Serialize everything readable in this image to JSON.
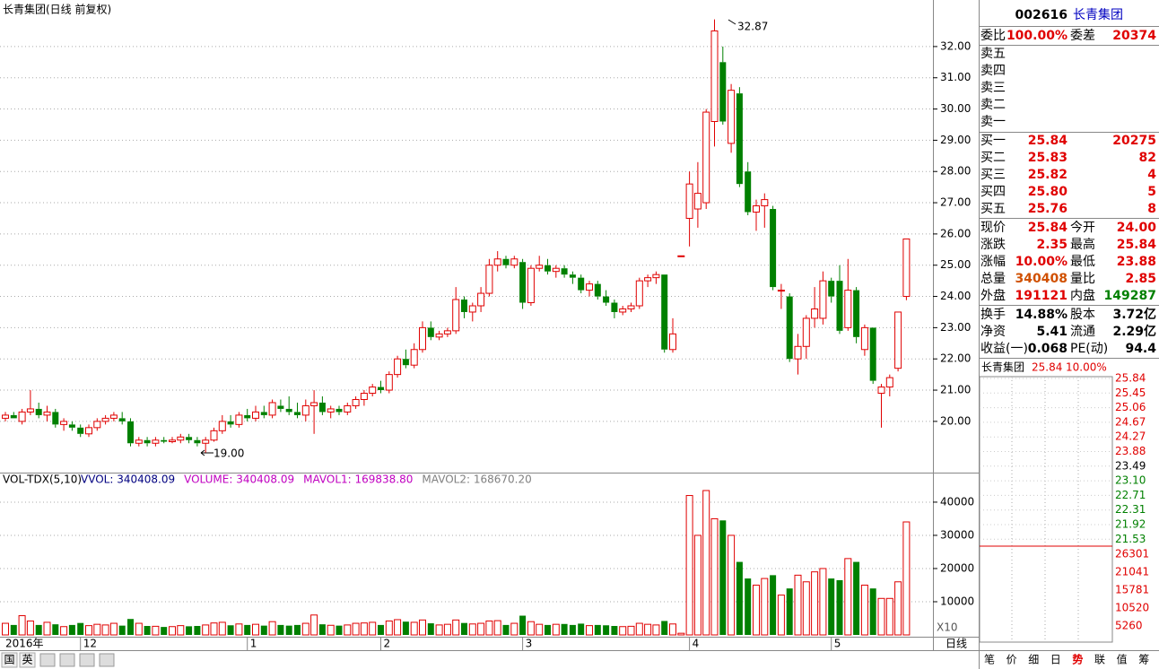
{
  "chart_data": [
    {
      "type": "candlestick",
      "title": "长青集团(日线 前复权)",
      "categories": [
        "2016年",
        null,
        null,
        null,
        null,
        null,
        null,
        null,
        null,
        "12",
        null,
        null,
        null,
        null,
        null,
        null,
        null,
        null,
        null,
        null,
        null,
        null,
        null,
        null,
        null,
        null,
        null,
        null,
        null,
        "1",
        null,
        null,
        null,
        null,
        null,
        null,
        null,
        null,
        null,
        null,
        null,
        null,
        null,
        null,
        null,
        "2",
        null,
        null,
        null,
        null,
        null,
        null,
        null,
        null,
        null,
        null,
        null,
        null,
        null,
        null,
        null,
        null,
        "3",
        null,
        null,
        null,
        null,
        null,
        null,
        null,
        null,
        null,
        null,
        null,
        null,
        null,
        null,
        null,
        null,
        null,
        null,
        null,
        "4",
        null,
        null,
        null,
        null,
        null,
        null,
        null,
        null,
        null,
        null,
        null,
        null,
        null,
        null,
        null,
        null,
        "5",
        null,
        null,
        null,
        null,
        null,
        null,
        null,
        null,
        null
      ],
      "open": [
        20.1,
        20.2,
        20.0,
        20.3,
        20.4,
        20.2,
        20.3,
        19.9,
        19.9,
        19.8,
        19.6,
        19.8,
        20.0,
        20.1,
        20.1,
        20.0,
        19.3,
        19.4,
        19.3,
        19.4,
        19.35,
        19.4,
        19.5,
        19.4,
        19.3,
        19.4,
        19.7,
        20.0,
        19.9,
        20.2,
        20.1,
        20.3,
        20.2,
        20.5,
        20.4,
        20.3,
        20.2,
        20.5,
        20.6,
        20.3,
        20.4,
        20.3,
        20.5,
        20.7,
        20.9,
        21.1,
        21.0,
        21.5,
        22.0,
        21.8,
        22.3,
        23.0,
        22.7,
        22.8,
        22.9,
        23.9,
        23.5,
        23.7,
        24.1,
        25.0,
        25.2,
        25.0,
        25.1,
        23.8,
        24.9,
        25.0,
        24.8,
        24.9,
        24.7,
        24.6,
        24.2,
        24.4,
        24.0,
        23.8,
        23.5,
        23.6,
        23.7,
        24.5,
        24.6,
        24.7,
        22.3,
        25.3,
        26.5,
        26.8,
        27.0,
        29.6,
        31.5,
        28.9,
        30.5,
        28.0,
        26.7,
        26.9,
        26.8,
        24.2,
        24.0,
        22.0,
        22.4,
        23.3,
        23.3,
        24.5,
        24.5,
        23.0,
        24.2,
        22.3,
        23.0,
        20.9,
        21.1,
        21.7,
        24.0
      ],
      "high": [
        20.3,
        20.3,
        20.4,
        21.0,
        20.6,
        20.5,
        20.4,
        20.1,
        20.0,
        19.9,
        19.9,
        20.1,
        20.2,
        20.3,
        20.3,
        20.1,
        19.5,
        19.5,
        19.5,
        19.5,
        19.5,
        19.6,
        19.6,
        19.5,
        19.5,
        19.8,
        20.2,
        20.2,
        20.3,
        20.4,
        20.5,
        20.5,
        20.7,
        20.7,
        20.8,
        20.6,
        20.7,
        21.0,
        20.8,
        20.5,
        20.5,
        20.6,
        20.8,
        21.0,
        21.2,
        21.3,
        21.6,
        22.1,
        22.3,
        22.5,
        23.2,
        23.2,
        22.9,
        23.0,
        24.3,
        24.0,
        23.8,
        24.3,
        25.2,
        25.45,
        25.3,
        25.3,
        25.2,
        25.0,
        25.3,
        25.2,
        25.0,
        25.0,
        24.8,
        24.7,
        24.5,
        24.5,
        24.2,
        23.9,
        23.7,
        23.8,
        24.6,
        24.7,
        24.8,
        24.7,
        23.3,
        25.3,
        28.0,
        28.3,
        30.0,
        32.87,
        32.0,
        30.8,
        30.7,
        28.3,
        27.1,
        27.3,
        26.9,
        24.4,
        24.1,
        22.8,
        23.4,
        24.3,
        24.8,
        24.6,
        25.0,
        25.2,
        24.3,
        23.1,
        23.0,
        21.2,
        21.5,
        23.5,
        25.84
      ],
      "low": [
        20.0,
        20.1,
        19.9,
        20.2,
        20.1,
        20.0,
        19.8,
        19.7,
        19.7,
        19.5,
        19.5,
        19.7,
        19.9,
        20.0,
        19.9,
        19.2,
        19.2,
        19.2,
        19.2,
        19.3,
        19.3,
        19.3,
        19.3,
        19.2,
        19.0,
        19.35,
        19.6,
        19.8,
        19.8,
        20.0,
        20.0,
        20.1,
        20.1,
        20.3,
        20.2,
        20.1,
        20.0,
        19.6,
        20.2,
        20.1,
        20.2,
        20.2,
        20.4,
        20.5,
        20.8,
        20.9,
        20.9,
        21.4,
        21.7,
        21.7,
        22.2,
        22.6,
        22.6,
        22.7,
        22.8,
        23.3,
        23.2,
        23.5,
        24.0,
        24.8,
        24.9,
        24.9,
        23.6,
        23.7,
        24.8,
        24.7,
        24.6,
        24.6,
        24.4,
        24.1,
        24.0,
        23.9,
        23.7,
        23.3,
        23.4,
        23.5,
        23.6,
        24.3,
        24.4,
        22.2,
        22.2,
        25.3,
        25.6,
        26.2,
        26.8,
        28.8,
        29.5,
        28.6,
        27.5,
        26.6,
        26.1,
        26.2,
        24.2,
        23.6,
        21.9,
        21.5,
        22.0,
        23.0,
        23.1,
        23.8,
        22.8,
        22.9,
        22.5,
        22.1,
        21.2,
        19.8,
        20.8,
        21.6,
        23.88
      ],
      "close": [
        20.2,
        20.1,
        20.3,
        20.4,
        20.2,
        20.3,
        19.9,
        20.0,
        19.8,
        19.6,
        19.8,
        20.0,
        20.1,
        20.2,
        20.0,
        19.3,
        19.4,
        19.3,
        19.4,
        19.35,
        19.4,
        19.5,
        19.4,
        19.3,
        19.4,
        19.7,
        20.0,
        19.9,
        20.2,
        20.1,
        20.3,
        20.2,
        20.6,
        20.4,
        20.3,
        20.2,
        20.5,
        20.6,
        20.3,
        20.4,
        20.3,
        20.5,
        20.7,
        20.9,
        21.1,
        21.0,
        21.5,
        22.0,
        21.8,
        22.3,
        23.0,
        22.7,
        22.8,
        22.9,
        23.9,
        23.5,
        23.7,
        24.1,
        25.0,
        25.2,
        25.0,
        25.2,
        23.8,
        24.9,
        25.0,
        24.8,
        24.9,
        24.7,
        24.6,
        24.2,
        24.4,
        24.0,
        23.8,
        23.5,
        23.6,
        23.7,
        24.5,
        24.6,
        24.7,
        22.3,
        22.8,
        25.3,
        27.6,
        27.3,
        29.9,
        32.5,
        29.6,
        30.6,
        27.6,
        26.7,
        26.9,
        27.1,
        24.3,
        24.2,
        22.0,
        22.4,
        23.3,
        23.6,
        24.5,
        24.0,
        22.9,
        24.2,
        22.7,
        23.0,
        21.3,
        21.1,
        21.4,
        23.5,
        25.84
      ],
      "up_color": "#e00000",
      "down_color": "#008000",
      "max_label": "32.87",
      "min_label": "19.00",
      "ylim": [
        18.36,
        33.49
      ],
      "yticks": [
        {
          "value": 20,
          "label": "20.00"
        },
        {
          "value": 21,
          "label": "21.00"
        },
        {
          "value": 22,
          "label": "22.00"
        },
        {
          "value": 23,
          "label": "23.00"
        },
        {
          "value": 24,
          "label": "24.00"
        },
        {
          "value": 25,
          "label": "25.00"
        },
        {
          "value": 26,
          "label": "26.00"
        },
        {
          "value": 27,
          "label": "27.00"
        },
        {
          "value": 28,
          "label": "28.00"
        },
        {
          "value": 29,
          "label": "29.00"
        },
        {
          "value": 30,
          "label": "30.00"
        },
        {
          "value": 31,
          "label": "31.00"
        },
        {
          "value": 32,
          "label": "32.00"
        }
      ],
      "grid": true
    },
    {
      "type": "volume",
      "title": "VOL-TDX(5,10)",
      "indicators": [
        "VVOL: 340408.09",
        "VOLUME: 340408.09",
        "MAVOL1: 169838.80",
        "MAVOL2: 168670.20"
      ],
      "indicator_colors": [
        "#000080",
        "#c000c0",
        "#c000c0",
        "#808080"
      ],
      "scale_label": "X10",
      "values": [
        3500,
        3000,
        5800,
        4200,
        3000,
        3800,
        3200,
        2500,
        3000,
        3600,
        2800,
        3200,
        3000,
        3500,
        2800,
        4800,
        3500,
        2700,
        2600,
        2400,
        2500,
        2800,
        2600,
        2700,
        3000,
        3600,
        3800,
        2900,
        3300,
        3000,
        3200,
        2800,
        4000,
        3000,
        2800,
        3000,
        3500,
        6000,
        3200,
        2900,
        2800,
        3000,
        3500,
        3600,
        3800,
        3000,
        4200,
        4600,
        4000,
        3800,
        4500,
        3500,
        3000,
        3200,
        4500,
        3600,
        3300,
        3500,
        4200,
        4300,
        3000,
        3500,
        5800,
        4000,
        3200,
        3000,
        3200,
        3300,
        3000,
        3400,
        2800,
        3000,
        2900,
        2700,
        2500,
        2600,
        3500,
        3200,
        3000,
        4200,
        3300,
        500,
        42000,
        30000,
        43500,
        35000,
        34500,
        30000,
        22000,
        17000,
        15000,
        17000,
        18000,
        12000,
        14000,
        18000,
        16000,
        19000,
        20000,
        17000,
        16500,
        23000,
        22000,
        15000,
        14000,
        11000,
        11000,
        16000,
        34040.8
      ],
      "ylim": [
        0,
        48900
      ],
      "yticks": [
        10000,
        20000,
        30000,
        40000
      ]
    }
  ],
  "period_label": "日线",
  "quote": {
    "code": "002616",
    "name": "长青集团",
    "rows": [
      {
        "l1": "委比",
        "v1": "100.00%",
        "c1": "#e00000",
        "l2": "委差",
        "v2": "20374",
        "c2": "#e00000"
      },
      {
        "l1": "卖五"
      },
      {
        "l1": "卖四"
      },
      {
        "l1": "卖三"
      },
      {
        "l1": "卖二"
      },
      {
        "l1": "卖一"
      },
      {
        "l1": "买一",
        "v1": "25.84",
        "c1": "#e00000",
        "v2": "20275",
        "c2": "#e00000"
      },
      {
        "l1": "买二",
        "v1": "25.83",
        "c1": "#e00000",
        "v2": "82",
        "c2": "#e00000"
      },
      {
        "l1": "买三",
        "v1": "25.82",
        "c1": "#e00000",
        "v2": "4",
        "c2": "#e00000"
      },
      {
        "l1": "买四",
        "v1": "25.80",
        "c1": "#e00000",
        "v2": "5",
        "c2": "#e00000"
      },
      {
        "l1": "买五",
        "v1": "25.76",
        "c1": "#e00000",
        "v2": "8",
        "c2": "#e00000"
      },
      {
        "l1": "现价",
        "v1": "25.84",
        "c1": "#e00000",
        "l2": "今开",
        "v2": "24.00",
        "c2": "#e00000"
      },
      {
        "l1": "涨跌",
        "v1": "2.35",
        "c1": "#e00000",
        "l2": "最高",
        "v2": "25.84",
        "c2": "#e00000"
      },
      {
        "l1": "涨幅",
        "v1": "10.00%",
        "c1": "#e00000",
        "l2": "最低",
        "v2": "23.88",
        "c2": "#e00000"
      },
      {
        "l1": "总量",
        "v1": "340408",
        "c1": "#d05000",
        "l2": "量比",
        "v2": "2.85",
        "c2": "#e00000"
      },
      {
        "l1": "外盘",
        "v1": "191121",
        "c1": "#e00000",
        "l2": "内盘",
        "v2": "149287",
        "c2": "#008000"
      },
      {
        "l1": "换手",
        "v1": "14.88%",
        "c1": "#000000",
        "l2": "股本",
        "v2": "3.72亿",
        "c2": "#000000"
      },
      {
        "l1": "净资",
        "v1": "5.41",
        "c1": "#000000",
        "l2": "流通",
        "v2": "2.29亿",
        "c2": "#000000"
      },
      {
        "l1": "收益(一)",
        "v1": "0.068",
        "c1": "#000000",
        "l2": "PE(动)",
        "v2": "94.4",
        "c2": "#000000"
      }
    ]
  },
  "mini": {
    "name": "长青集团",
    "price": "25.84",
    "change": "10.00%",
    "price_labels": [
      "25.84",
      "25.45",
      "25.06",
      "24.67",
      "24.27",
      "23.88",
      "23.49",
      "23.10",
      "22.71",
      "22.31",
      "21.92",
      "21.53"
    ],
    "volume_labels": [
      "26301",
      "21041",
      "15781",
      "10520",
      "5260"
    ]
  },
  "tabs": [
    "笔",
    "价",
    "细",
    "日",
    "势",
    "联",
    "值",
    "筹"
  ],
  "toolbar": [
    "国",
    "英"
  ]
}
